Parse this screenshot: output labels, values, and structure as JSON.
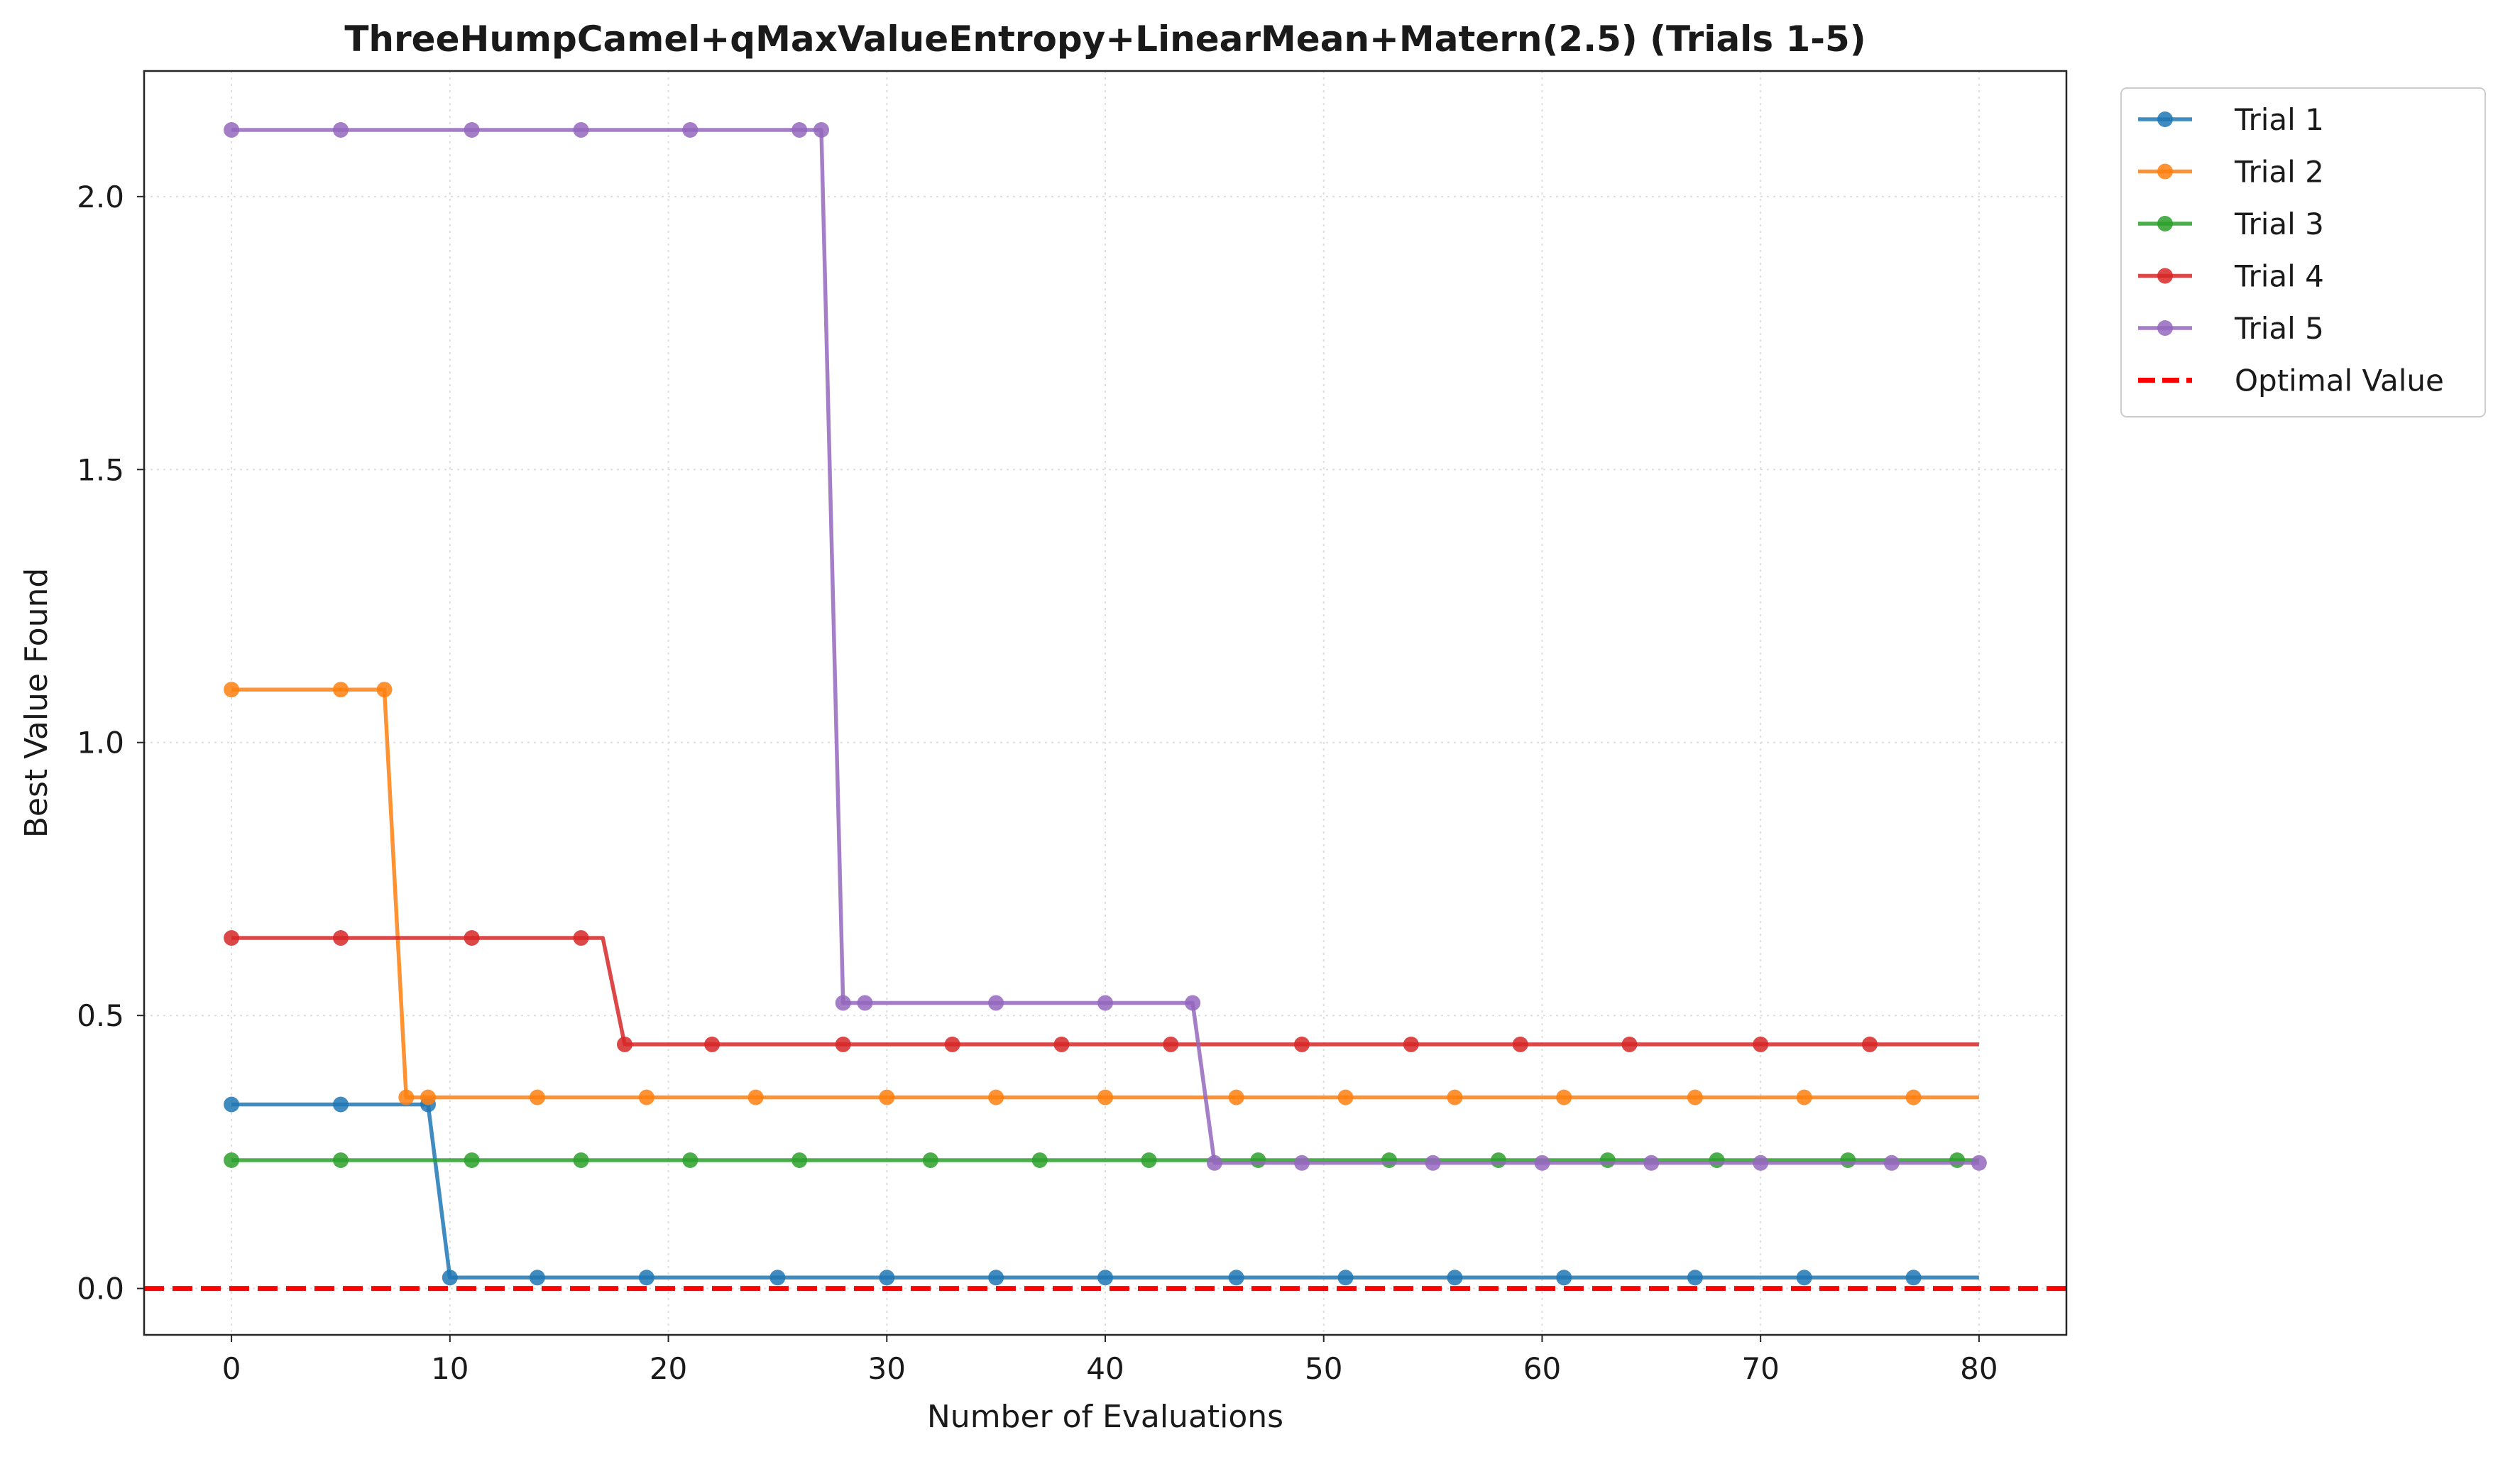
{
  "chart_data": {
    "type": "line",
    "title": "ThreeHumpCamel+qMaxValueEntropy+LinearMean+Matern(2.5) (Trials 1-5)",
    "xlabel": "Number of Evaluations",
    "ylabel": "Best Value Found",
    "xlim": [
      -4,
      84
    ],
    "ylim": [
      -0.085,
      2.23
    ],
    "xticks": [
      0,
      10,
      20,
      30,
      40,
      50,
      60,
      70,
      80
    ],
    "xtick_labels": [
      "0",
      "10",
      "20",
      "30",
      "40",
      "50",
      "60",
      "70",
      "80"
    ],
    "yticks": [
      0.0,
      0.5,
      1.0,
      1.5,
      2.0
    ],
    "ytick_labels": [
      "0.0",
      "0.5",
      "1.0",
      "1.5",
      "2.0"
    ],
    "grid": true,
    "legend_position": "outside upper right",
    "optimal_value": 0.0,
    "optimal_label": "Optimal Value",
    "optimal_color": "#ff0000",
    "series": [
      {
        "name": "Trial 1",
        "color": "#1f77b4",
        "x": [
          0,
          1,
          2,
          3,
          4,
          5,
          6,
          7,
          8,
          9,
          10,
          80
        ],
        "y": [
          0.337,
          0.337,
          0.337,
          0.337,
          0.337,
          0.337,
          0.337,
          0.337,
          0.337,
          0.337,
          0.02,
          0.02
        ],
        "markers": [
          0,
          5,
          9,
          10,
          14,
          19,
          25,
          30,
          35,
          40,
          46,
          51,
          56,
          61,
          67,
          72,
          77
        ]
      },
      {
        "name": "Trial 2",
        "color": "#ff7f0e",
        "x": [
          0,
          7,
          8,
          80
        ],
        "y": [
          1.097,
          1.097,
          0.35,
          0.35
        ],
        "markers": [
          0,
          5,
          7,
          8,
          9,
          14,
          19,
          24,
          30,
          35,
          40,
          46,
          51,
          56,
          61,
          67,
          72,
          77
        ]
      },
      {
        "name": "Trial 3",
        "color": "#2ca02c",
        "x": [
          0,
          80
        ],
        "y": [
          0.235,
          0.235
        ],
        "markers": [
          0,
          5,
          11,
          16,
          21,
          26,
          32,
          37,
          42,
          47,
          53,
          58,
          63,
          68,
          74,
          79
        ]
      },
      {
        "name": "Trial 4",
        "color": "#d62728",
        "x": [
          0,
          17,
          18,
          80
        ],
        "y": [
          0.642,
          0.642,
          0.447,
          0.447
        ],
        "markers": [
          0,
          5,
          11,
          16,
          18,
          22,
          28,
          33,
          38,
          43,
          49,
          54,
          59,
          64,
          70,
          75
        ]
      },
      {
        "name": "Trial 5",
        "color": "#9467bd",
        "x": [
          0,
          27,
          28,
          44,
          45,
          80
        ],
        "y": [
          2.122,
          2.122,
          0.523,
          0.523,
          0.23,
          0.23
        ],
        "markers": [
          0,
          5,
          11,
          16,
          21,
          26,
          27,
          28,
          29,
          35,
          40,
          44,
          45,
          49,
          55,
          60,
          65,
          70,
          76,
          80
        ]
      }
    ]
  }
}
